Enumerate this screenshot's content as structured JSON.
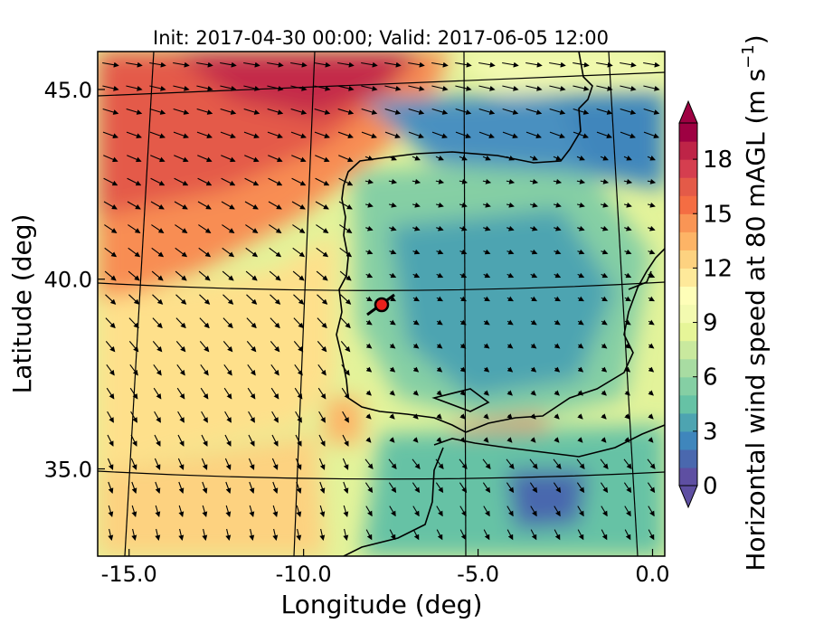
{
  "map": {
    "title": "Init: 2017-04-30 00:00; Valid: 2017-06-05 12:00",
    "xlabel": "Longitude (deg)",
    "ylabel": "Latitude (deg)",
    "x_ticks": [
      "-15.0",
      "-10.0",
      "-5.0",
      "0.0"
    ],
    "y_ticks": [
      "45.0",
      "40.0",
      "35.0"
    ],
    "x_tick_values": [
      -15,
      -10,
      -5,
      0
    ],
    "y_tick_values": [
      45,
      40,
      35
    ],
    "lon_range": [
      -15.9,
      0.35
    ],
    "lat_range": [
      32.7,
      46.0
    ],
    "graticule_lons": [
      -15,
      -10,
      -5,
      0
    ],
    "graticule_lats": [
      35,
      40,
      45
    ],
    "marker": {
      "lon": -7.7,
      "lat": 39.3,
      "color": "#e8201c"
    },
    "colors": {
      "coast": "#000000",
      "arrow": "#000000"
    }
  },
  "colorbar": {
    "label_main": "Horizontal wind speed at 80 mAGL (m s",
    "label_exp": "−1",
    "label_close": ")",
    "ticks": [
      "0",
      "3",
      "6",
      "9",
      "12",
      "15",
      "18"
    ],
    "tick_values": [
      0,
      3,
      6,
      9,
      12,
      15,
      18
    ],
    "range": [
      0,
      20
    ],
    "extend": "both",
    "colors": [
      "#5e4fa2",
      "#4a68ae",
      "#3f86bc",
      "#4da4b1",
      "#66c2a5",
      "#85cfa4",
      "#a8dca2",
      "#c9e99e",
      "#e6f598",
      "#f3fab0",
      "#fefeb8",
      "#fee99a",
      "#fdd280",
      "#fdb466",
      "#f99555",
      "#f46d43",
      "#e45a48",
      "#d53e4f",
      "#be2447",
      "#9e0142"
    ]
  }
}
